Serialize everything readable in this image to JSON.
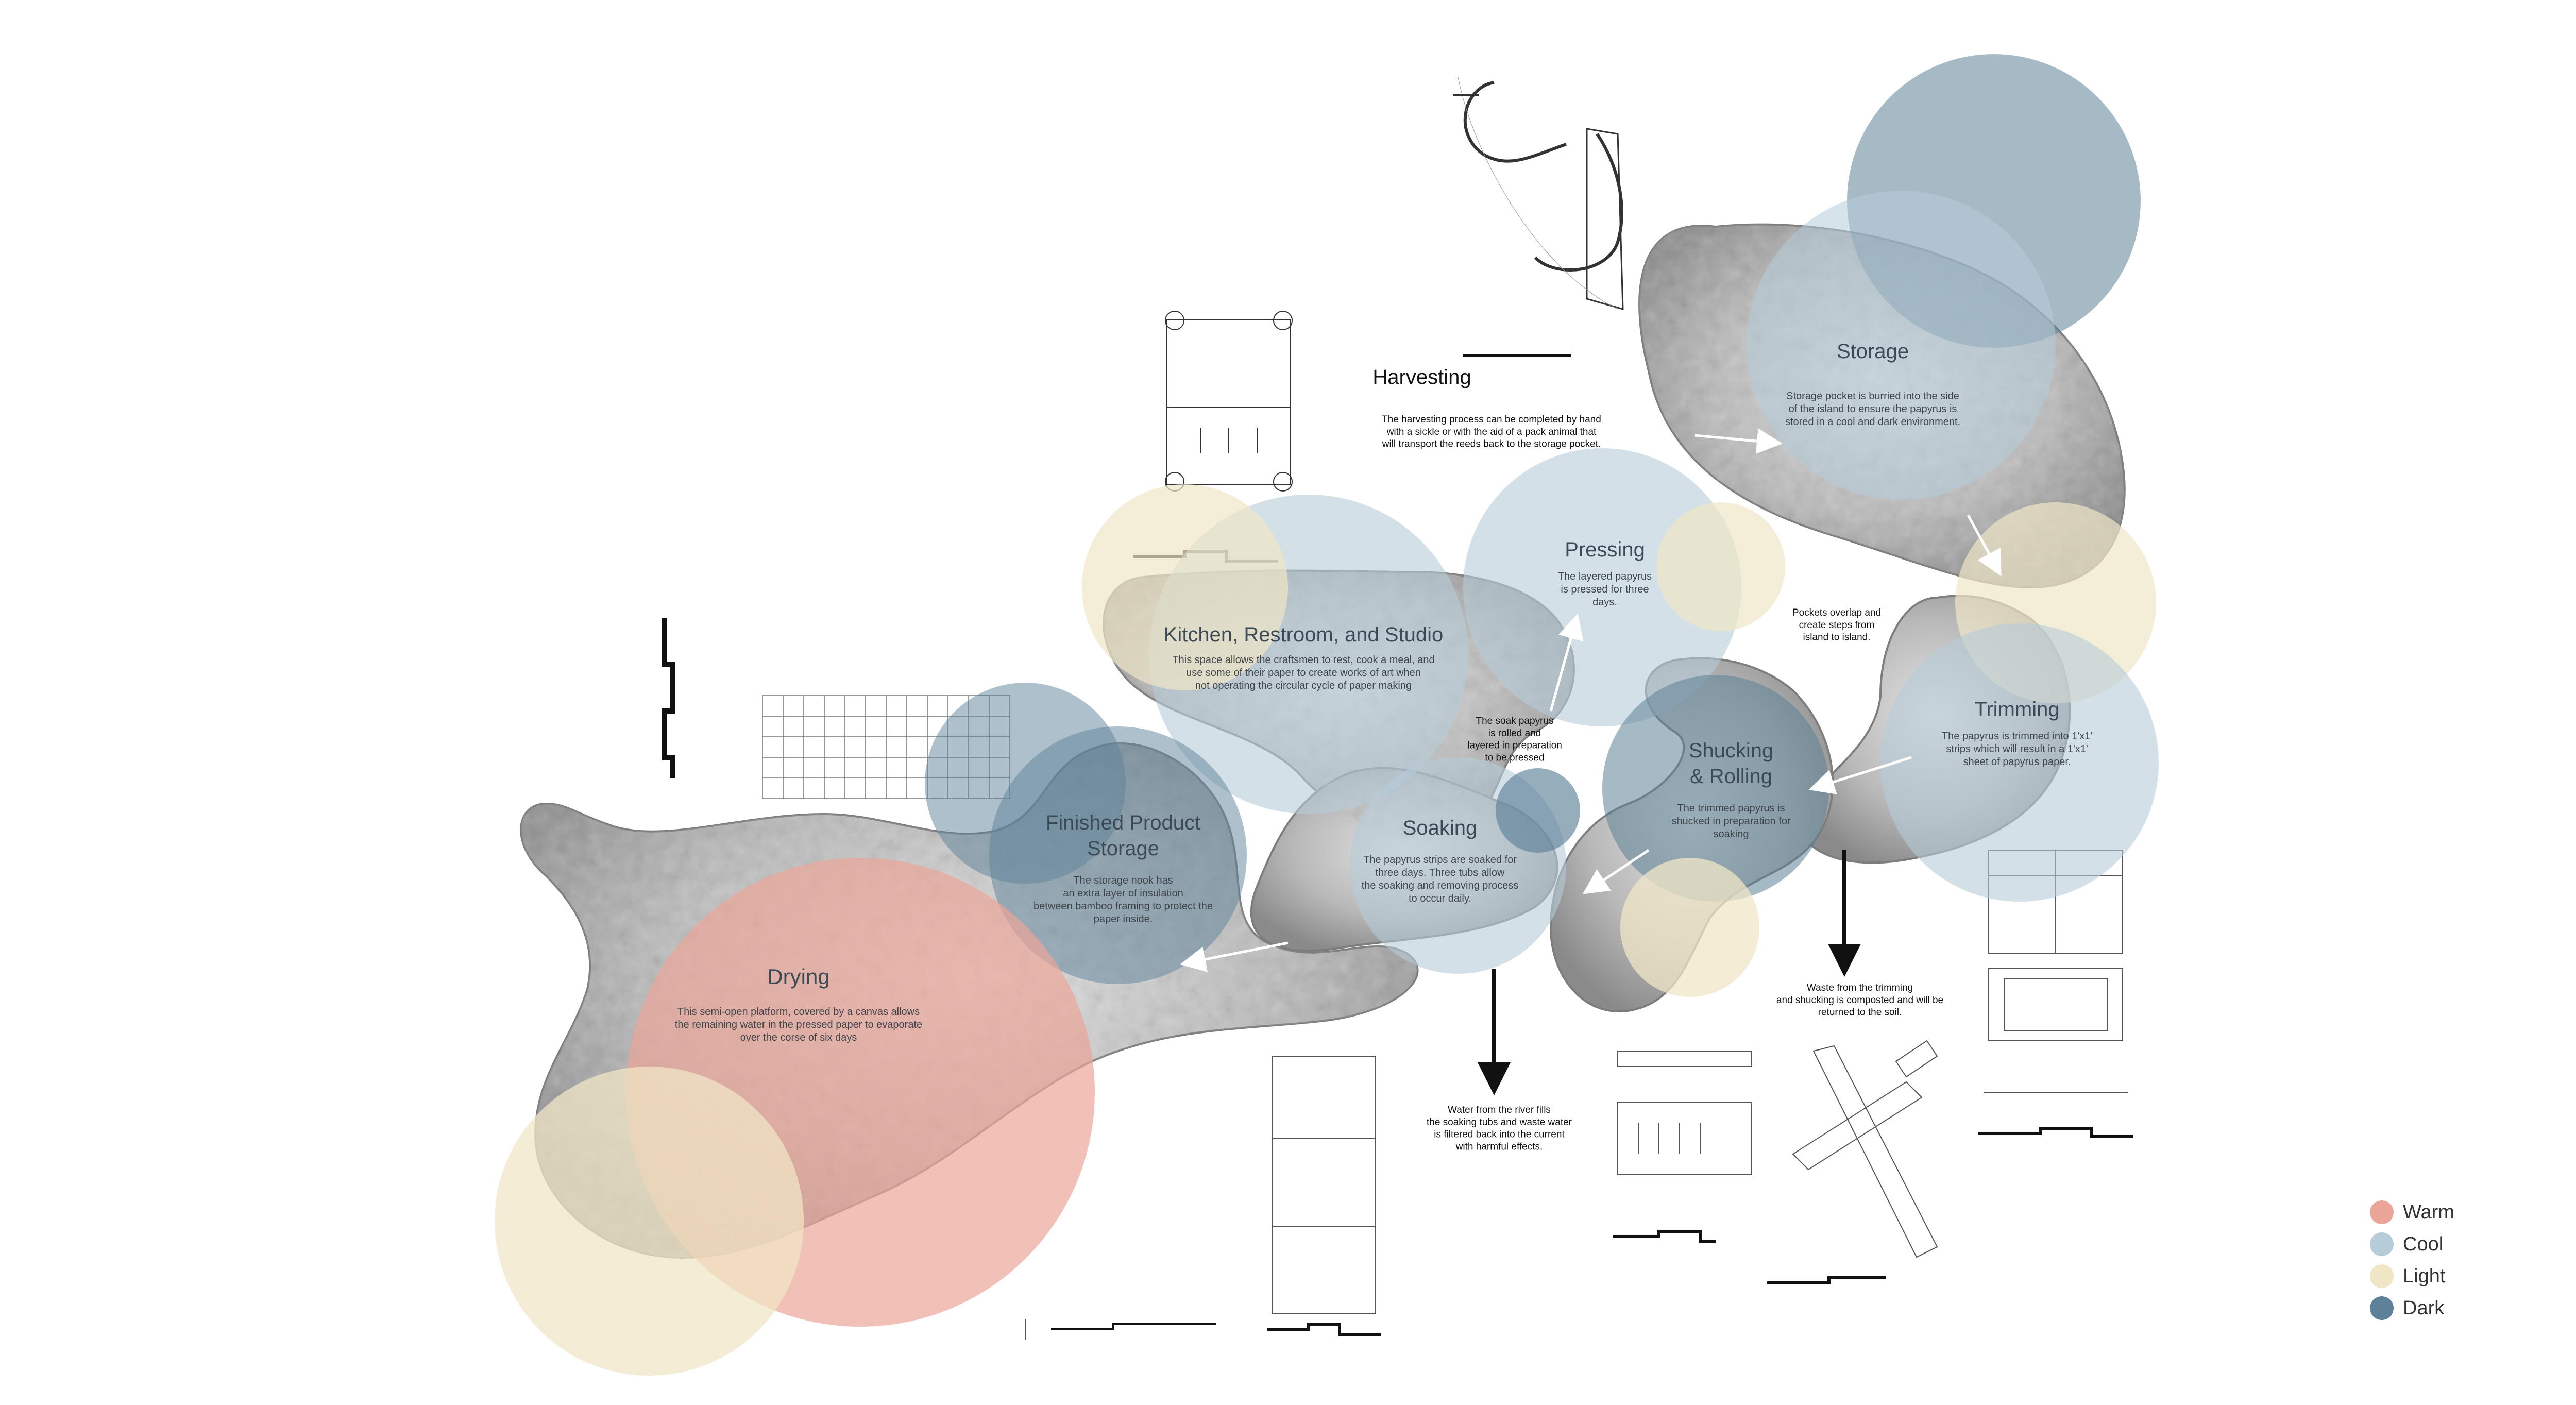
{
  "colors": {
    "warm": "#eba598",
    "cool": "#b6ccd9",
    "light": "#f0e6c6",
    "dark": "#5d8198",
    "island": "#9a9a9a"
  },
  "zones": [
    {
      "id": "storage",
      "title": "Storage",
      "desc": [
        "Storage pocket is burried into the side",
        "of the island to ensure the papyrus is",
        "stored in a cool and dark environment."
      ]
    },
    {
      "id": "pressing",
      "title": "Pressing",
      "desc": [
        "The layered papyrus",
        "is pressed for three",
        "days."
      ]
    },
    {
      "id": "kitchen",
      "title": "Kitchen, Restroom, and Studio",
      "desc": [
        "This space allows the craftsmen to rest, cook a meal, and",
        "use some of their paper to create works of art when",
        "not operating the circular cycle of paper making"
      ]
    },
    {
      "id": "trimming",
      "title": "Trimming",
      "desc": [
        "The papyrus is trimmed into 1'x1'",
        "strips which will result in a 1'x1'",
        "sheet of papyrus paper."
      ]
    },
    {
      "id": "shucking",
      "title": [
        "Shucking",
        "& Rolling"
      ],
      "desc": [
        "The trimmed papyrus is",
        "shucked in preparation for",
        "soaking"
      ]
    },
    {
      "id": "soaking",
      "title": "Soaking",
      "desc": [
        "The papyrus strips are soaked for",
        "three days. Three tubs allow",
        "the soaking and removing process",
        "to occur daily."
      ]
    },
    {
      "id": "finished",
      "title": [
        "Finished Product",
        "Storage"
      ],
      "desc": [
        "The storage nook has",
        "an extra layer of insulation",
        "between bamboo framing to protect the",
        "paper inside."
      ]
    },
    {
      "id": "drying",
      "title": "Drying",
      "desc": [
        "This semi-open platform, covered by a canvas allows",
        "the remaining water in the pressed paper to evaporate",
        "over the corse of six days"
      ]
    }
  ],
  "harvesting": {
    "title": "Harvesting",
    "desc": [
      "The harvesting process can be completed by hand",
      "with a sickle or with the aid of a pack animal that",
      "will transport the reeds back to the storage pocket."
    ]
  },
  "notes": {
    "pockets": [
      "Pockets overlap and",
      "create steps from",
      "island to island."
    ],
    "soak_rolled": [
      "The soak papyrus",
      "is rolled and",
      "layered in preparation",
      "to be pressed"
    ],
    "waste": [
      "Waste from the trimming",
      "and shucking is composted and will be",
      "returned to the soil."
    ],
    "water": [
      "Water from the river fills",
      "the soaking tubs and waste water",
      "is filtered back into the current",
      "with harmful effects."
    ]
  },
  "legend": [
    {
      "label": "Warm",
      "color": "#eba598"
    },
    {
      "label": "Cool",
      "color": "#b6ccd9"
    },
    {
      "label": "Light",
      "color": "#f0e6c6"
    },
    {
      "label": "Dark",
      "color": "#5d8198"
    }
  ]
}
